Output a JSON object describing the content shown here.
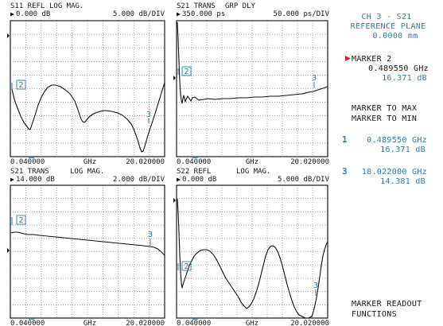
{
  "panels": [
    {
      "id": "s11",
      "title": "S11 REFL",
      "format": "LOG MAG.",
      "ref_value": "0.000 dB",
      "scale": "5.000 dB/DIV",
      "x_start": "0.040000",
      "x_unit": "GHz",
      "x_stop": "20.020000",
      "marker_box_label": "2",
      "marker3_label": "3"
    },
    {
      "id": "s21-grpdly",
      "title": "S21 TRANS",
      "format": "GRP DLY",
      "ref_value": "350.000 ps",
      "scale": "50.000 ps/DIV",
      "x_start": "0.040000",
      "x_unit": "GHz",
      "x_stop": "20.020000",
      "marker_box_label": "2",
      "marker3_label": "3"
    },
    {
      "id": "s21-logmag",
      "title": "S21 TRANS",
      "format": "LOG MAG.",
      "ref_value": "14.000 dB",
      "scale": "2.000 dB/DIV",
      "x_start": "0.040000",
      "x_unit": "GHz",
      "x_stop": "20.020000",
      "marker_box_label": "2",
      "marker3_label": "3"
    },
    {
      "id": "s22",
      "title": "S22 REFL",
      "format": "LOG MAG.",
      "ref_value": "0.000 dB",
      "scale": "5.000 dB/DIV",
      "x_start": "0.040000",
      "x_unit": "GHz",
      "x_stop": "20.020000",
      "marker_box_label": "2",
      "marker3_label": "3"
    }
  ],
  "side_panel": {
    "channel": "CH 3 - S21",
    "ref_plane_label": "REFERENCE PLANE",
    "ref_plane_value": "0.0000 mm",
    "active_marker_label": "MARKER 2",
    "active_marker_freq": "0.489550 GHz",
    "active_marker_value": "16.371 dB",
    "menu_max": "MARKER TO MAX",
    "menu_min": "MARKER TO MIN",
    "marker_readouts": [
      {
        "num": "1",
        "freq": "0.489550 GHz",
        "value": "16.371 dB"
      },
      {
        "num": "3",
        "freq": "18.022000 GHz",
        "value": "14.381 dB"
      }
    ],
    "footer_line1": "MARKER READOUT",
    "footer_line2": "FUNCTIONS"
  },
  "colors": {
    "accent": "#2a7fb0",
    "active_marker_arrow": "#e02020",
    "trace": "#111111"
  }
}
